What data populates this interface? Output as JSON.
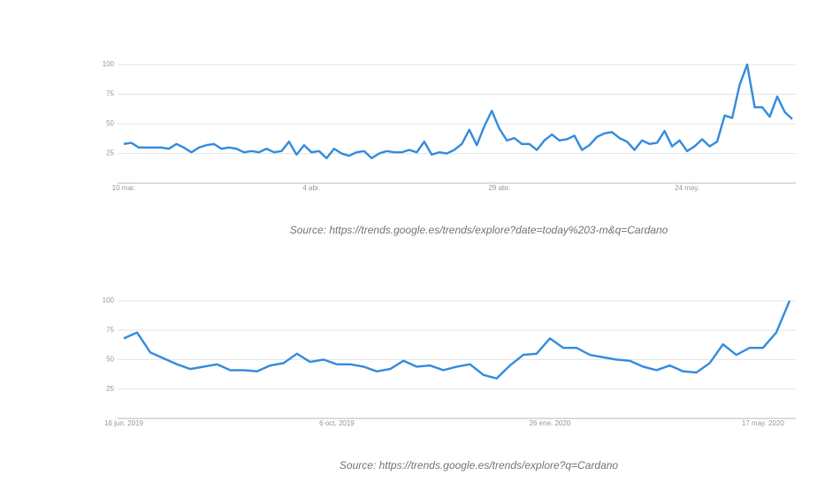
{
  "chart_data": [
    {
      "type": "line",
      "categories": [
        "10 mar.",
        null,
        null,
        null,
        null,
        null,
        null,
        null,
        null,
        null,
        null,
        null,
        null,
        null,
        null,
        null,
        null,
        null,
        null,
        null,
        null,
        null,
        null,
        null,
        null,
        "4 abr.",
        null,
        null,
        null,
        null,
        null,
        null,
        null,
        null,
        null,
        null,
        null,
        null,
        null,
        null,
        null,
        null,
        null,
        null,
        null,
        null,
        null,
        null,
        null,
        null,
        "29 abr.",
        null,
        null,
        null,
        null,
        null,
        null,
        null,
        null,
        null,
        null,
        null,
        null,
        null,
        null,
        null,
        null,
        null,
        null,
        null,
        null,
        null,
        null,
        null,
        null,
        "24 may.",
        null,
        null,
        null,
        null,
        null,
        null,
        null,
        null,
        null,
        null,
        null,
        null,
        null,
        null
      ],
      "series": [
        {
          "color": "#3b8fde",
          "values": [
            33,
            34,
            30,
            30,
            30,
            30,
            29,
            33,
            30,
            26,
            30,
            32,
            33,
            29,
            30,
            29,
            26,
            27,
            26,
            29,
            26,
            27,
            35,
            24,
            32,
            26,
            27,
            21,
            29,
            25,
            23,
            26,
            27,
            21,
            25,
            27,
            26,
            26,
            28,
            26,
            35,
            24,
            26,
            25,
            28,
            33,
            45,
            32,
            48,
            61,
            46,
            36,
            38,
            33,
            33,
            28,
            36,
            41,
            36,
            37,
            40,
            28,
            32,
            39,
            42,
            43,
            38,
            35,
            28,
            36,
            33,
            34,
            44,
            31,
            36,
            27,
            31,
            37,
            31,
            35,
            57,
            55,
            83,
            100,
            64,
            64,
            56,
            73,
            60,
            54
          ]
        }
      ],
      "ylim": [
        0,
        100
      ],
      "yticks": [
        25,
        50,
        75,
        100
      ],
      "grid": true,
      "source": "Source: https://trends.google.es/trends/explore?date=today%203-m&q=Cardano"
    },
    {
      "type": "line",
      "categories": [
        "16 jun. 2019",
        null,
        null,
        null,
        null,
        null,
        null,
        null,
        null,
        null,
        null,
        null,
        null,
        null,
        null,
        null,
        "6 oct. 2019",
        null,
        null,
        null,
        null,
        null,
        null,
        null,
        null,
        null,
        null,
        null,
        null,
        null,
        null,
        null,
        "26 ene. 2020",
        null,
        null,
        null,
        null,
        null,
        null,
        null,
        null,
        null,
        null,
        null,
        null,
        null,
        null,
        null,
        "17 may. 2020",
        null,
        null
      ],
      "series": [
        {
          "color": "#3b8fde",
          "values": [
            68,
            73,
            56,
            51,
            46,
            42,
            44,
            46,
            41,
            41,
            40,
            45,
            47,
            55,
            48,
            50,
            46,
            46,
            44,
            40,
            42,
            49,
            44,
            45,
            41,
            44,
            46,
            37,
            34,
            45,
            54,
            55,
            68,
            60,
            60,
            54,
            52,
            50,
            49,
            44,
            41,
            45,
            40,
            39,
            47,
            63,
            54,
            60,
            60,
            73,
            100
          ]
        }
      ],
      "ylim": [
        0,
        100
      ],
      "yticks": [
        25,
        50,
        75,
        100
      ],
      "grid": true,
      "source": "Source: https://trends.google.es/trends/explore?q=Cardano"
    }
  ]
}
